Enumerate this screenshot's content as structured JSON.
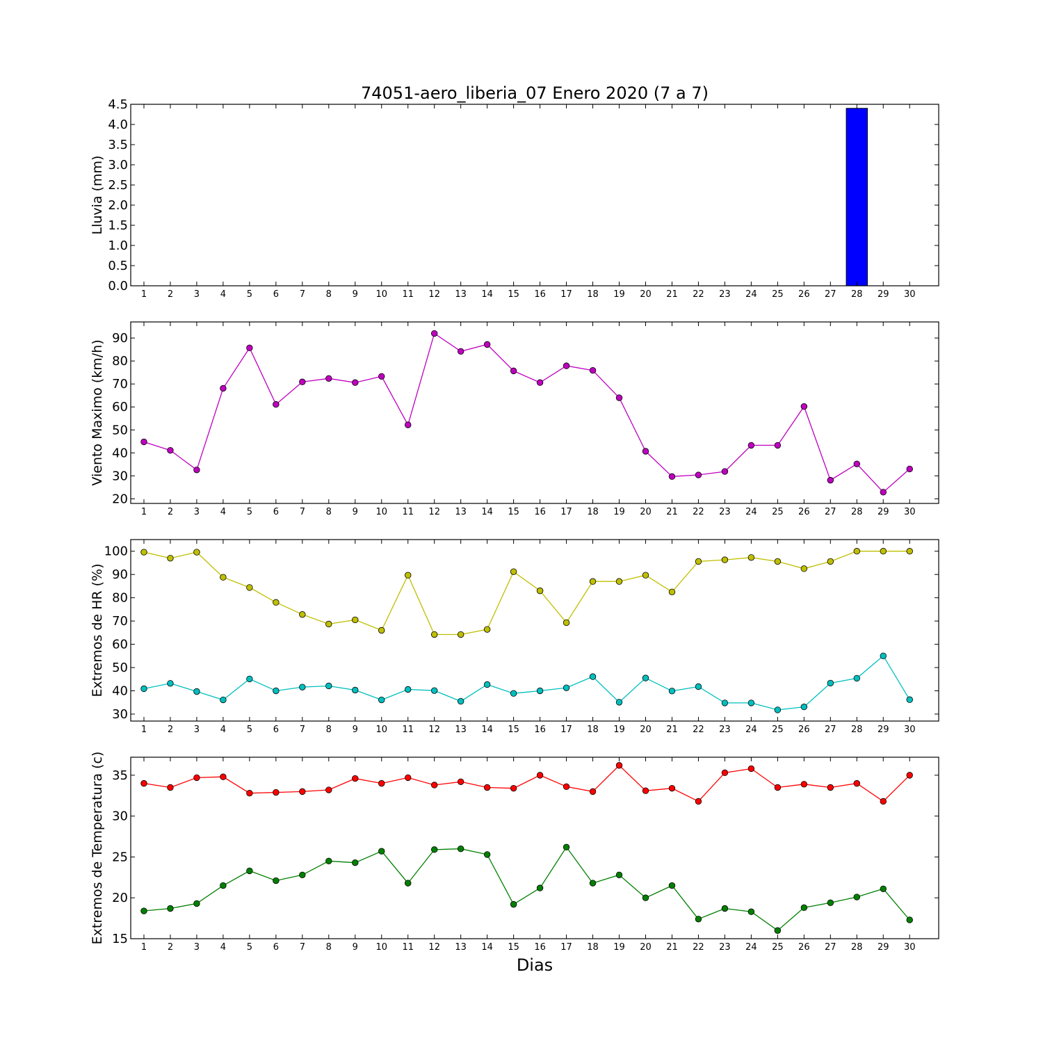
{
  "figure": {
    "title": "74051-aero_liberia_07 Enero 2020  (7 a 7)",
    "xlabel": "Dias"
  },
  "chart_data": [
    {
      "type": "bar",
      "ylabel": "Lluvia (mm)",
      "ylim": [
        0,
        4.5
      ],
      "yticks": [
        "0.0",
        "0.5",
        "1.0",
        "1.5",
        "2.0",
        "2.5",
        "3.0",
        "3.5",
        "4.0",
        "4.5"
      ],
      "categories": [
        1,
        2,
        3,
        4,
        5,
        6,
        7,
        8,
        9,
        10,
        11,
        12,
        13,
        14,
        15,
        16,
        17,
        18,
        19,
        20,
        21,
        22,
        23,
        24,
        25,
        26,
        27,
        28,
        29,
        30
      ],
      "series": [
        {
          "color": "#0000ff",
          "values": [
            0,
            0,
            0,
            0,
            0,
            0,
            0,
            0,
            0,
            0,
            0,
            0,
            0,
            0,
            0,
            0,
            0,
            0,
            0,
            0,
            0,
            0,
            0,
            0,
            0,
            0,
            0,
            4.4,
            0,
            0
          ]
        }
      ]
    },
    {
      "type": "line",
      "ylabel": "Viento Maximo (km/h)",
      "ylim": [
        18,
        97
      ],
      "yticks": [
        "20",
        "30",
        "40",
        "50",
        "60",
        "70",
        "80",
        "90"
      ],
      "categories": [
        1,
        2,
        3,
        4,
        5,
        6,
        7,
        8,
        9,
        10,
        11,
        12,
        13,
        14,
        15,
        16,
        17,
        18,
        19,
        20,
        21,
        22,
        23,
        24,
        25,
        26,
        27,
        28,
        29,
        30
      ],
      "series": [
        {
          "color": "#bf00bf",
          "values": [
            44.8,
            41.1,
            32.6,
            68.1,
            85.7,
            61.1,
            70.9,
            72.4,
            70.6,
            73.3,
            52.2,
            92.0,
            84.2,
            87.2,
            75.7,
            70.6,
            77.9,
            75.9,
            64.0,
            40.7,
            29.7,
            30.4,
            31.9,
            43.3,
            43.3,
            60.2,
            28.1,
            35.2,
            22.9,
            33.0
          ]
        }
      ]
    },
    {
      "type": "line",
      "ylabel": "Extremos de HR (%)",
      "ylim": [
        27,
        105
      ],
      "yticks": [
        "30",
        "40",
        "50",
        "60",
        "70",
        "80",
        "90",
        "100"
      ],
      "categories": [
        1,
        2,
        3,
        4,
        5,
        6,
        7,
        8,
        9,
        10,
        11,
        12,
        13,
        14,
        15,
        16,
        17,
        18,
        19,
        20,
        21,
        22,
        23,
        24,
        25,
        26,
        27,
        28,
        29,
        30
      ],
      "series": [
        {
          "color": "#bfbf00",
          "values": [
            99.6,
            97.0,
            99.6,
            88.8,
            84.4,
            78.0,
            72.8,
            68.7,
            70.5,
            66.0,
            89.7,
            64.2,
            64.2,
            66.4,
            91.2,
            83.0,
            69.3,
            87.0,
            87.0,
            89.7,
            82.5,
            95.6,
            96.3,
            97.3,
            95.6,
            92.5,
            95.6,
            100,
            100,
            100
          ]
        },
        {
          "color": "#00bfbf",
          "values": [
            40.9,
            43.2,
            39.7,
            36.1,
            45.1,
            40.0,
            41.6,
            42.1,
            40.3,
            36.1,
            40.6,
            40.1,
            35.5,
            42.7,
            38.9,
            40.0,
            41.3,
            46.1,
            35.1,
            45.5,
            39.9,
            41.8,
            34.8,
            34.8,
            31.8,
            33.1,
            43.3,
            45.4,
            55.0,
            36.2
          ]
        }
      ]
    },
    {
      "type": "line",
      "ylabel": "Extremos de Temperatura (c)",
      "ylim": [
        15,
        37.2
      ],
      "yticks": [
        "15",
        "20",
        "25",
        "30",
        "35"
      ],
      "categories": [
        1,
        2,
        3,
        4,
        5,
        6,
        7,
        8,
        9,
        10,
        11,
        12,
        13,
        14,
        15,
        16,
        17,
        18,
        19,
        20,
        21,
        22,
        23,
        24,
        25,
        26,
        27,
        28,
        29,
        30
      ],
      "series": [
        {
          "color": "#ff0000",
          "values": [
            34.0,
            33.5,
            34.7,
            34.8,
            32.8,
            32.9,
            33.0,
            33.2,
            34.6,
            34.0,
            34.7,
            33.8,
            34.2,
            33.5,
            33.4,
            35.0,
            33.6,
            33.0,
            36.2,
            33.1,
            33.4,
            31.8,
            35.3,
            35.8,
            33.5,
            33.9,
            33.5,
            34.0,
            31.8,
            35.0
          ]
        },
        {
          "color": "#008000",
          "values": [
            18.4,
            18.7,
            19.3,
            21.5,
            23.3,
            22.1,
            22.8,
            24.5,
            24.3,
            25.7,
            21.8,
            25.9,
            26.0,
            25.3,
            19.2,
            21.2,
            26.2,
            21.8,
            22.8,
            20.0,
            21.5,
            17.4,
            18.7,
            18.3,
            16.0,
            18.8,
            19.4,
            20.1,
            21.1,
            17.3
          ]
        }
      ]
    }
  ]
}
